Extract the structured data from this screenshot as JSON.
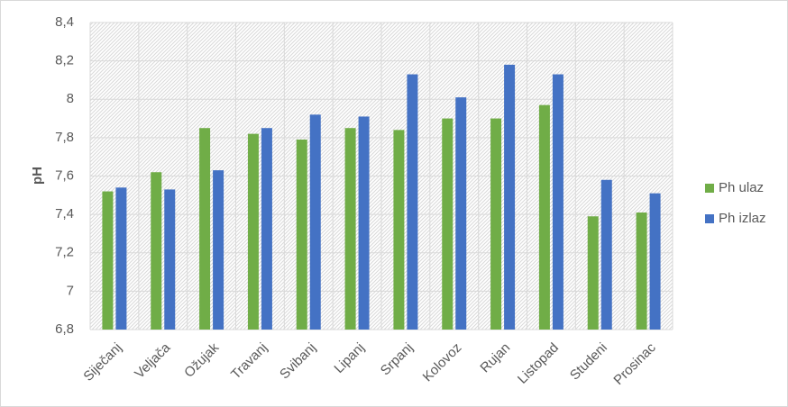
{
  "chart_data": {
    "type": "bar",
    "y_label": "pH",
    "categories": [
      "Siječanj",
      "Veljača",
      "Ožujak",
      "Travanj",
      "Svibanj",
      "Lipanj",
      "Srpanj",
      "Kolovoz",
      "Rujan",
      "Listopad",
      "Studeni",
      "Prosinac"
    ],
    "series": [
      {
        "name": "Ph ulaz",
        "color": "#70ad47",
        "values": [
          7.52,
          7.62,
          7.85,
          7.82,
          7.79,
          7.85,
          7.84,
          7.9,
          7.9,
          7.97,
          7.39,
          7.41
        ]
      },
      {
        "name": "Ph izlaz",
        "color": "#4472c4",
        "values": [
          7.54,
          7.53,
          7.63,
          7.85,
          7.92,
          7.91,
          8.13,
          8.01,
          8.18,
          8.13,
          7.58,
          7.51
        ]
      }
    ],
    "ylim": [
      6.8,
      8.4
    ],
    "yticks": [
      {
        "value": 6.8,
        "label": "6,8"
      },
      7,
      {
        "value": 7.2,
        "label": "7,2"
      },
      {
        "value": 7.4,
        "label": "7,4"
      },
      {
        "value": 7.6,
        "label": "7,6"
      },
      {
        "value": 7.8,
        "label": "7,8"
      },
      8,
      {
        "value": 8.2,
        "label": "8,2"
      },
      {
        "value": 8.4,
        "label": "8,4"
      }
    ],
    "grid": true,
    "legend": "right"
  }
}
